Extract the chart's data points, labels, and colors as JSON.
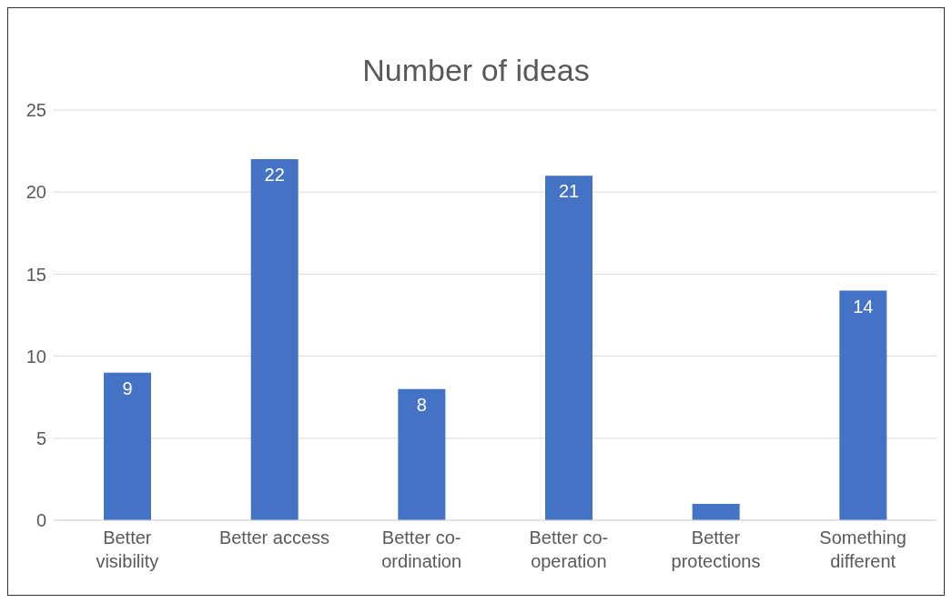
{
  "chart_data": {
    "type": "bar",
    "title": "Number of ideas",
    "categories": [
      "Better visibility",
      "Better access",
      "Better co-ordination",
      "Better co-operation",
      "Better protections",
      "Something different"
    ],
    "values": [
      9,
      22,
      8,
      21,
      1,
      14
    ],
    "value_labels": [
      "9",
      "22",
      "8",
      "21",
      null,
      "14"
    ],
    "color": "#4472c4",
    "ylim": [
      0,
      25
    ],
    "yticks": [
      0,
      5,
      10,
      15,
      20,
      25
    ],
    "grid": "y",
    "legend": false
  }
}
